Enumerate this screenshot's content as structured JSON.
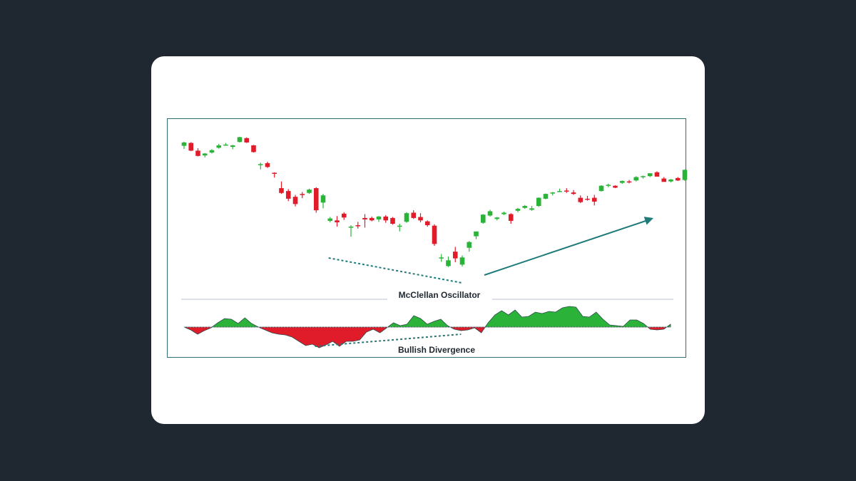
{
  "chart_data": {
    "type": "candlestick",
    "panels": [
      {
        "name": "price",
        "candles": [
          {
            "o": 81.0,
            "h": 85.2,
            "l": 77.8,
            "c": 84.5
          },
          {
            "o": 84.0,
            "h": 84.8,
            "l": 75.5,
            "c": 76.0
          },
          {
            "o": 76.0,
            "h": 78.5,
            "l": 70.0,
            "c": 70.5
          },
          {
            "o": 71.0,
            "h": 73.5,
            "l": 69.0,
            "c": 73.0
          },
          {
            "o": 74.0,
            "h": 77.5,
            "l": 73.0,
            "c": 76.5
          },
          {
            "o": 79.0,
            "h": 83.0,
            "l": 78.0,
            "c": 81.5
          },
          {
            "o": 82.0,
            "h": 84.0,
            "l": 81.2,
            "c": 82.3
          },
          {
            "o": 80.0,
            "h": 82.0,
            "l": 77.5,
            "c": 81.5
          },
          {
            "o": 85.0,
            "h": 90.5,
            "l": 84.5,
            "c": 90.0
          },
          {
            "o": 89.0,
            "h": 89.8,
            "l": 84.0,
            "c": 84.5
          },
          {
            "o": 81.5,
            "h": 82.0,
            "l": 74.0,
            "c": 74.5
          },
          {
            "o": 61.0,
            "h": 63.5,
            "l": 56.5,
            "c": 62.0
          },
          {
            "o": 63.0,
            "h": 64.5,
            "l": 58.0,
            "c": 59.0
          },
          {
            "o": 53.0,
            "h": 53.5,
            "l": 48.0,
            "c": 52.0
          },
          {
            "o": 37.0,
            "h": 44.0,
            "l": 31.0,
            "c": 32.0
          },
          {
            "o": 34.0,
            "h": 36.0,
            "l": 23.5,
            "c": 26.0
          },
          {
            "o": 28.0,
            "h": 30.0,
            "l": 18.0,
            "c": 20.5
          },
          {
            "o": 31.0,
            "h": 33.0,
            "l": 26.5,
            "c": 30.0
          },
          {
            "o": 32.0,
            "h": 36.5,
            "l": 31.0,
            "c": 35.5
          },
          {
            "o": 37.0,
            "h": 38.0,
            "l": 11.5,
            "c": 14.0
          },
          {
            "o": 22.0,
            "h": 31.0,
            "l": 16.0,
            "c": 29.5
          },
          {
            "o": 3.0,
            "h": 7.0,
            "l": 1.5,
            "c": 5.5
          },
          {
            "o": 3.5,
            "h": 8.0,
            "l": -3.0,
            "c": 1.5
          },
          {
            "o": 10.5,
            "h": 12.0,
            "l": 4.0,
            "c": 6.5
          },
          {
            "o": -3.5,
            "h": -1.5,
            "l": -13.5,
            "c": -3.0
          },
          {
            "o": -1.5,
            "h": 2.0,
            "l": -5.0,
            "c": -2.0
          },
          {
            "o": 6.0,
            "h": 10.0,
            "l": -4.0,
            "c": 4.5
          },
          {
            "o": 6.0,
            "h": 7.5,
            "l": 2.5,
            "c": 3.5
          },
          {
            "o": 4.5,
            "h": 8.0,
            "l": 2.0,
            "c": 7.5
          },
          {
            "o": 7.5,
            "h": 9.0,
            "l": 1.0,
            "c": 3.5
          },
          {
            "o": 6.0,
            "h": 7.0,
            "l": -1.0,
            "c": 0.0
          },
          {
            "o": -3.0,
            "h": 0.0,
            "l": -8.0,
            "c": -2.0
          },
          {
            "o": 2.0,
            "h": 12.0,
            "l": 1.0,
            "c": 11.0
          },
          {
            "o": 11.5,
            "h": 14.0,
            "l": 5.0,
            "c": 6.0
          },
          {
            "o": 7.0,
            "h": 11.0,
            "l": 1.5,
            "c": 3.5
          },
          {
            "o": 2.5,
            "h": 3.5,
            "l": -3.0,
            "c": -1.5
          },
          {
            "o": -2.0,
            "h": -0.5,
            "l": -23.0,
            "c": -21.0
          },
          {
            "o": -35.0,
            "h": -31.5,
            "l": -39.5,
            "c": -35.0
          },
          {
            "o": -44.0,
            "h": -34.0,
            "l": -45.0,
            "c": -38.0
          },
          {
            "o": -29.0,
            "h": -24.0,
            "l": -40.0,
            "c": -36.0
          },
          {
            "o": -42.5,
            "h": -33.0,
            "l": -44.5,
            "c": -35.0
          },
          {
            "o": -25.0,
            "h": -18.0,
            "l": -29.0,
            "c": -19.0
          },
          {
            "o": -13.0,
            "h": -9.0,
            "l": -16.0,
            "c": -8.0
          },
          {
            "o": 1.0,
            "h": 10.0,
            "l": 0.0,
            "c": 9.5
          },
          {
            "o": 8.5,
            "h": 14.5,
            "l": 7.5,
            "c": 13.0
          },
          {
            "o": 5.0,
            "h": 7.0,
            "l": 3.5,
            "c": 6.5
          },
          {
            "o": 10.0,
            "h": 12.5,
            "l": 9.0,
            "c": 11.5
          },
          {
            "o": 10.0,
            "h": 11.0,
            "l": 0.0,
            "c": 3.0
          },
          {
            "o": 13.5,
            "h": 16.5,
            "l": 12.0,
            "c": 15.5
          },
          {
            "o": 16.5,
            "h": 19.5,
            "l": 15.5,
            "c": 18.5
          },
          {
            "o": 14.5,
            "h": 18.5,
            "l": 13.5,
            "c": 16.0
          },
          {
            "o": 18.5,
            "h": 27.5,
            "l": 17.5,
            "c": 27.0
          },
          {
            "o": 26.0,
            "h": 31.5,
            "l": 25.5,
            "c": 31.0
          },
          {
            "o": 31.5,
            "h": 33.0,
            "l": 29.5,
            "c": 32.5
          },
          {
            "o": 33.5,
            "h": 36.5,
            "l": 33.0,
            "c": 34.0
          },
          {
            "o": 34.5,
            "h": 37.0,
            "l": 32.0,
            "c": 34.0
          },
          {
            "o": 32.5,
            "h": 35.0,
            "l": 30.0,
            "c": 31.0
          },
          {
            "o": 27.0,
            "h": 29.5,
            "l": 21.5,
            "c": 22.5
          },
          {
            "o": 26.0,
            "h": 29.0,
            "l": 24.0,
            "c": 25.5
          },
          {
            "o": 27.0,
            "h": 30.0,
            "l": 19.0,
            "c": 23.0
          },
          {
            "o": 34.0,
            "h": 40.0,
            "l": 33.5,
            "c": 39.5
          },
          {
            "o": 39.5,
            "h": 41.5,
            "l": 38.0,
            "c": 40.5
          },
          {
            "o": 39.5,
            "h": 40.0,
            "l": 37.0,
            "c": 37.5
          },
          {
            "o": 42.5,
            "h": 45.0,
            "l": 41.5,
            "c": 44.5
          },
          {
            "o": 44.0,
            "h": 45.5,
            "l": 42.0,
            "c": 43.0
          },
          {
            "o": 45.0,
            "h": 49.5,
            "l": 44.0,
            "c": 48.5
          },
          {
            "o": 48.5,
            "h": 50.0,
            "l": 47.0,
            "c": 49.5
          },
          {
            "o": 49.5,
            "h": 52.0,
            "l": 48.5,
            "c": 52.5
          },
          {
            "o": 53.5,
            "h": 54.5,
            "l": 50.0,
            "c": 49.0
          },
          {
            "o": 47.0,
            "h": 48.5,
            "l": 44.5,
            "c": 43.5
          },
          {
            "o": 44.0,
            "h": 46.5,
            "l": 43.0,
            "c": 46.0
          },
          {
            "o": 47.5,
            "h": 48.5,
            "l": 44.5,
            "c": 45.0
          },
          {
            "o": 45.5,
            "h": 56.5,
            "l": 44.5,
            "c": 56.0
          }
        ]
      },
      {
        "name": "McClellan Oscillator",
        "x": [
          0,
          1,
          2,
          3,
          4,
          5,
          6,
          7,
          8,
          9,
          10,
          11,
          12,
          13,
          14,
          15,
          16,
          17,
          18,
          19,
          20,
          21,
          22,
          23,
          24,
          25,
          26,
          27,
          28,
          29,
          30,
          31,
          32,
          33,
          34,
          35,
          36,
          37,
          38,
          39,
          40,
          41,
          42,
          43,
          44,
          45,
          46,
          47,
          48,
          49,
          50,
          51,
          52,
          53,
          54,
          55,
          56,
          57,
          58,
          59,
          60,
          61,
          62,
          63,
          64,
          65,
          66,
          67,
          68,
          69,
          70,
          71,
          72
        ],
        "values": [
          0,
          -4,
          -10,
          -5,
          -1,
          6,
          12,
          11,
          5,
          13,
          5,
          0,
          -4,
          -8,
          -10,
          -11,
          -14,
          -20,
          -26,
          -24,
          -29,
          -25,
          -20,
          -27,
          -20,
          -20,
          -18,
          -7,
          -3,
          -8,
          -1,
          6,
          2,
          4,
          16,
          12,
          4,
          8,
          11,
          2,
          -3,
          -5,
          -4,
          -1,
          -8,
          6,
          17,
          23,
          17,
          24,
          14,
          15,
          21,
          19,
          22,
          21,
          27,
          29,
          28,
          15,
          14,
          21,
          11,
          3,
          2,
          1,
          10,
          10,
          5,
          -3,
          -4,
          -3,
          4
        ],
        "ylim": [
          -40,
          40
        ]
      }
    ],
    "annotations": {
      "oscillator_label": "McClellan Oscillator",
      "divergence_label": "Bullish Divergence",
      "price_trendline": {
        "from_candle": 21,
        "to_candle": 41,
        "style": "dotted"
      },
      "oscillator_trendline": {
        "from_index": 20,
        "to_index": 41,
        "style": "dotted"
      },
      "uptrend_arrow": {
        "from_candle": 44,
        "to_candle": 68
      }
    },
    "colors": {
      "up": "#2bb339",
      "down": "#e01b2a",
      "annotation": "#1f7a7a",
      "frame": "#2f6f73",
      "card": "#ffffff",
      "background": "#1f2730"
    }
  }
}
